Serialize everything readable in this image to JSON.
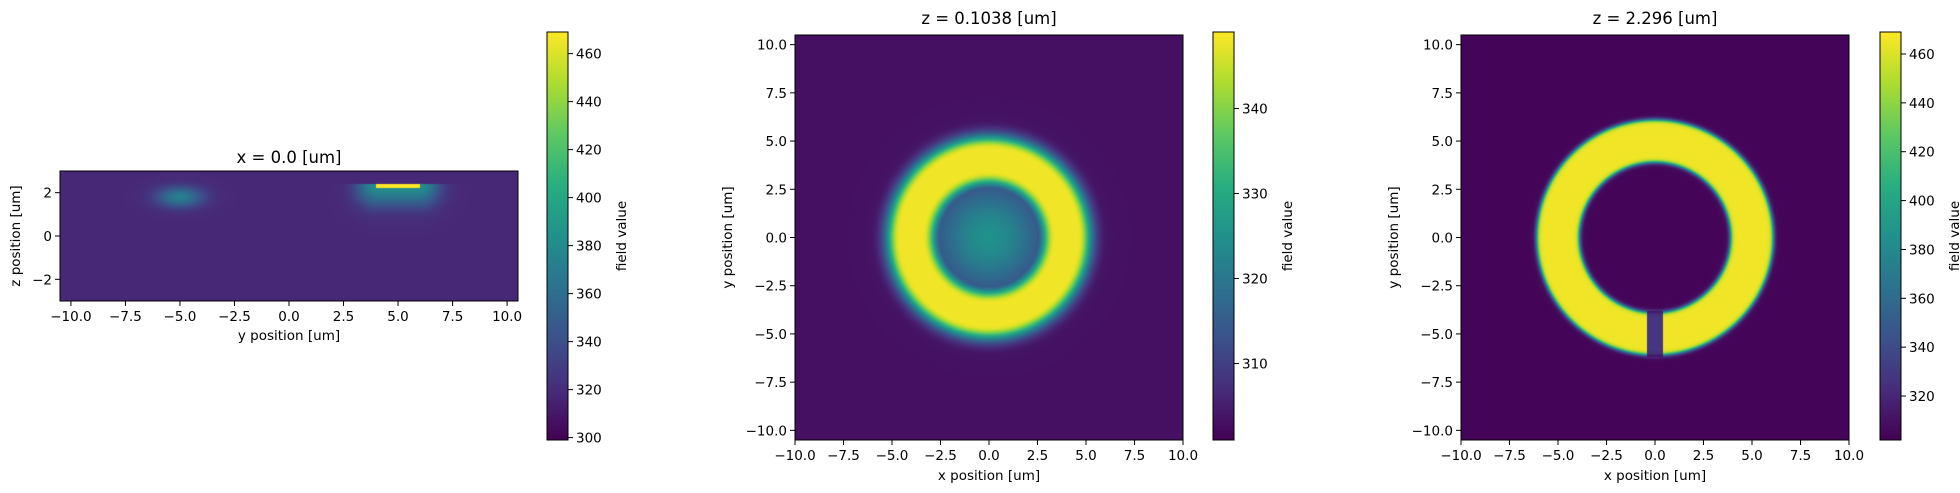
{
  "chart_data": [
    {
      "type": "heatmap",
      "title": "x = 0.0 [um]",
      "xlabel": "y position [um]",
      "ylabel": "z position [um]",
      "xlim": [
        -10.5,
        10.5
      ],
      "ylim": [
        -3.0,
        3.0
      ],
      "xticks": [
        -10.0,
        -7.5,
        -5.0,
        -2.5,
        0.0,
        2.5,
        5.0,
        7.5,
        10.0
      ],
      "xtick_labels": [
        "−10.0",
        "−7.5",
        "−5.0",
        "−2.5",
        "0.0",
        "2.5",
        "5.0",
        "7.5",
        "10.0"
      ],
      "yticks": [
        -2,
        0,
        2
      ],
      "ytick_labels": [
        "−2",
        "0",
        "2"
      ],
      "colormap": "viridis",
      "colorbar": {
        "label": "field value",
        "range": [
          299,
          469
        ],
        "ticks": [
          300,
          320,
          340,
          360,
          380,
          400,
          420,
          440,
          460
        ],
        "tick_labels": [
          "300",
          "320",
          "340",
          "360",
          "380",
          "400",
          "420",
          "440",
          "460"
        ]
      },
      "features": [
        {
          "kind": "blob",
          "center": [
            -5.0,
            1.8
          ],
          "size": [
            2.2,
            1.0
          ],
          "value": 372
        },
        {
          "kind": "bar",
          "center": [
            5.0,
            2.3
          ],
          "size": [
            2.0,
            0.2
          ],
          "value": 469
        }
      ],
      "background": 318
    },
    {
      "type": "heatmap",
      "title": "z = 0.1038 [um]",
      "xlabel": "x position [um]",
      "ylabel": "y position [um]",
      "xlim": [
        -10.0,
        10.0
      ],
      "ylim": [
        -10.5,
        10.5
      ],
      "xticks": [
        -10.0,
        -7.5,
        -5.0,
        -2.5,
        0.0,
        2.5,
        5.0,
        7.5,
        10.0
      ],
      "xtick_labels": [
        "−10.0",
        "−7.5",
        "−5.0",
        "−2.5",
        "0.0",
        "2.5",
        "5.0",
        "7.5",
        "10.0"
      ],
      "yticks": [
        -10.0,
        -7.5,
        -5.0,
        -2.5,
        0.0,
        2.5,
        5.0,
        7.5,
        10.0
      ],
      "ytick_labels": [
        "−10.0",
        "−7.5",
        "−5.0",
        "−2.5",
        "0.0",
        "2.5",
        "5.0",
        "7.5",
        "10.0"
      ],
      "colormap": "viridis",
      "colorbar": {
        "label": "field value",
        "range": [
          301,
          349
        ],
        "ticks": [
          310,
          320,
          330,
          340
        ],
        "tick_labels": [
          "310",
          "320",
          "330",
          "340"
        ]
      },
      "features": [
        {
          "kind": "ring",
          "center": [
            0,
            0
          ],
          "radius": 4.0,
          "width": 2.2,
          "value": 348
        },
        {
          "kind": "center",
          "center": [
            0,
            0
          ],
          "value": 325
        }
      ],
      "background": 303
    },
    {
      "type": "heatmap",
      "title": "z = 2.296 [um]",
      "xlabel": "x position [um]",
      "ylabel": "y position [um]",
      "xlim": [
        -10.0,
        10.0
      ],
      "ylim": [
        -10.5,
        10.5
      ],
      "xticks": [
        -10.0,
        -7.5,
        -5.0,
        -2.5,
        0.0,
        2.5,
        5.0,
        7.5,
        10.0
      ],
      "xtick_labels": [
        "−10.0",
        "−7.5",
        "−5.0",
        "−2.5",
        "0.0",
        "2.5",
        "5.0",
        "7.5",
        "10.0"
      ],
      "yticks": [
        -10.0,
        -7.5,
        -5.0,
        -2.5,
        0.0,
        2.5,
        5.0,
        7.5,
        10.0
      ],
      "ytick_labels": [
        "−10.0",
        "−7.5",
        "−5.0",
        "−2.5",
        "0.0",
        "2.5",
        "5.0",
        "7.5",
        "10.0"
      ],
      "colormap": "viridis",
      "colorbar": {
        "label": "field value",
        "range": [
          302,
          469
        ],
        "ticks": [
          320,
          340,
          360,
          380,
          400,
          420,
          440,
          460
        ],
        "tick_labels": [
          "320",
          "340",
          "360",
          "380",
          "400",
          "420",
          "440",
          "460"
        ]
      },
      "features": [
        {
          "kind": "ring",
          "center": [
            0,
            0
          ],
          "radius": 5.0,
          "width": 2.2,
          "value": 466,
          "gap": [
            -0.4,
            0.4
          ]
        }
      ],
      "background": 304
    }
  ]
}
